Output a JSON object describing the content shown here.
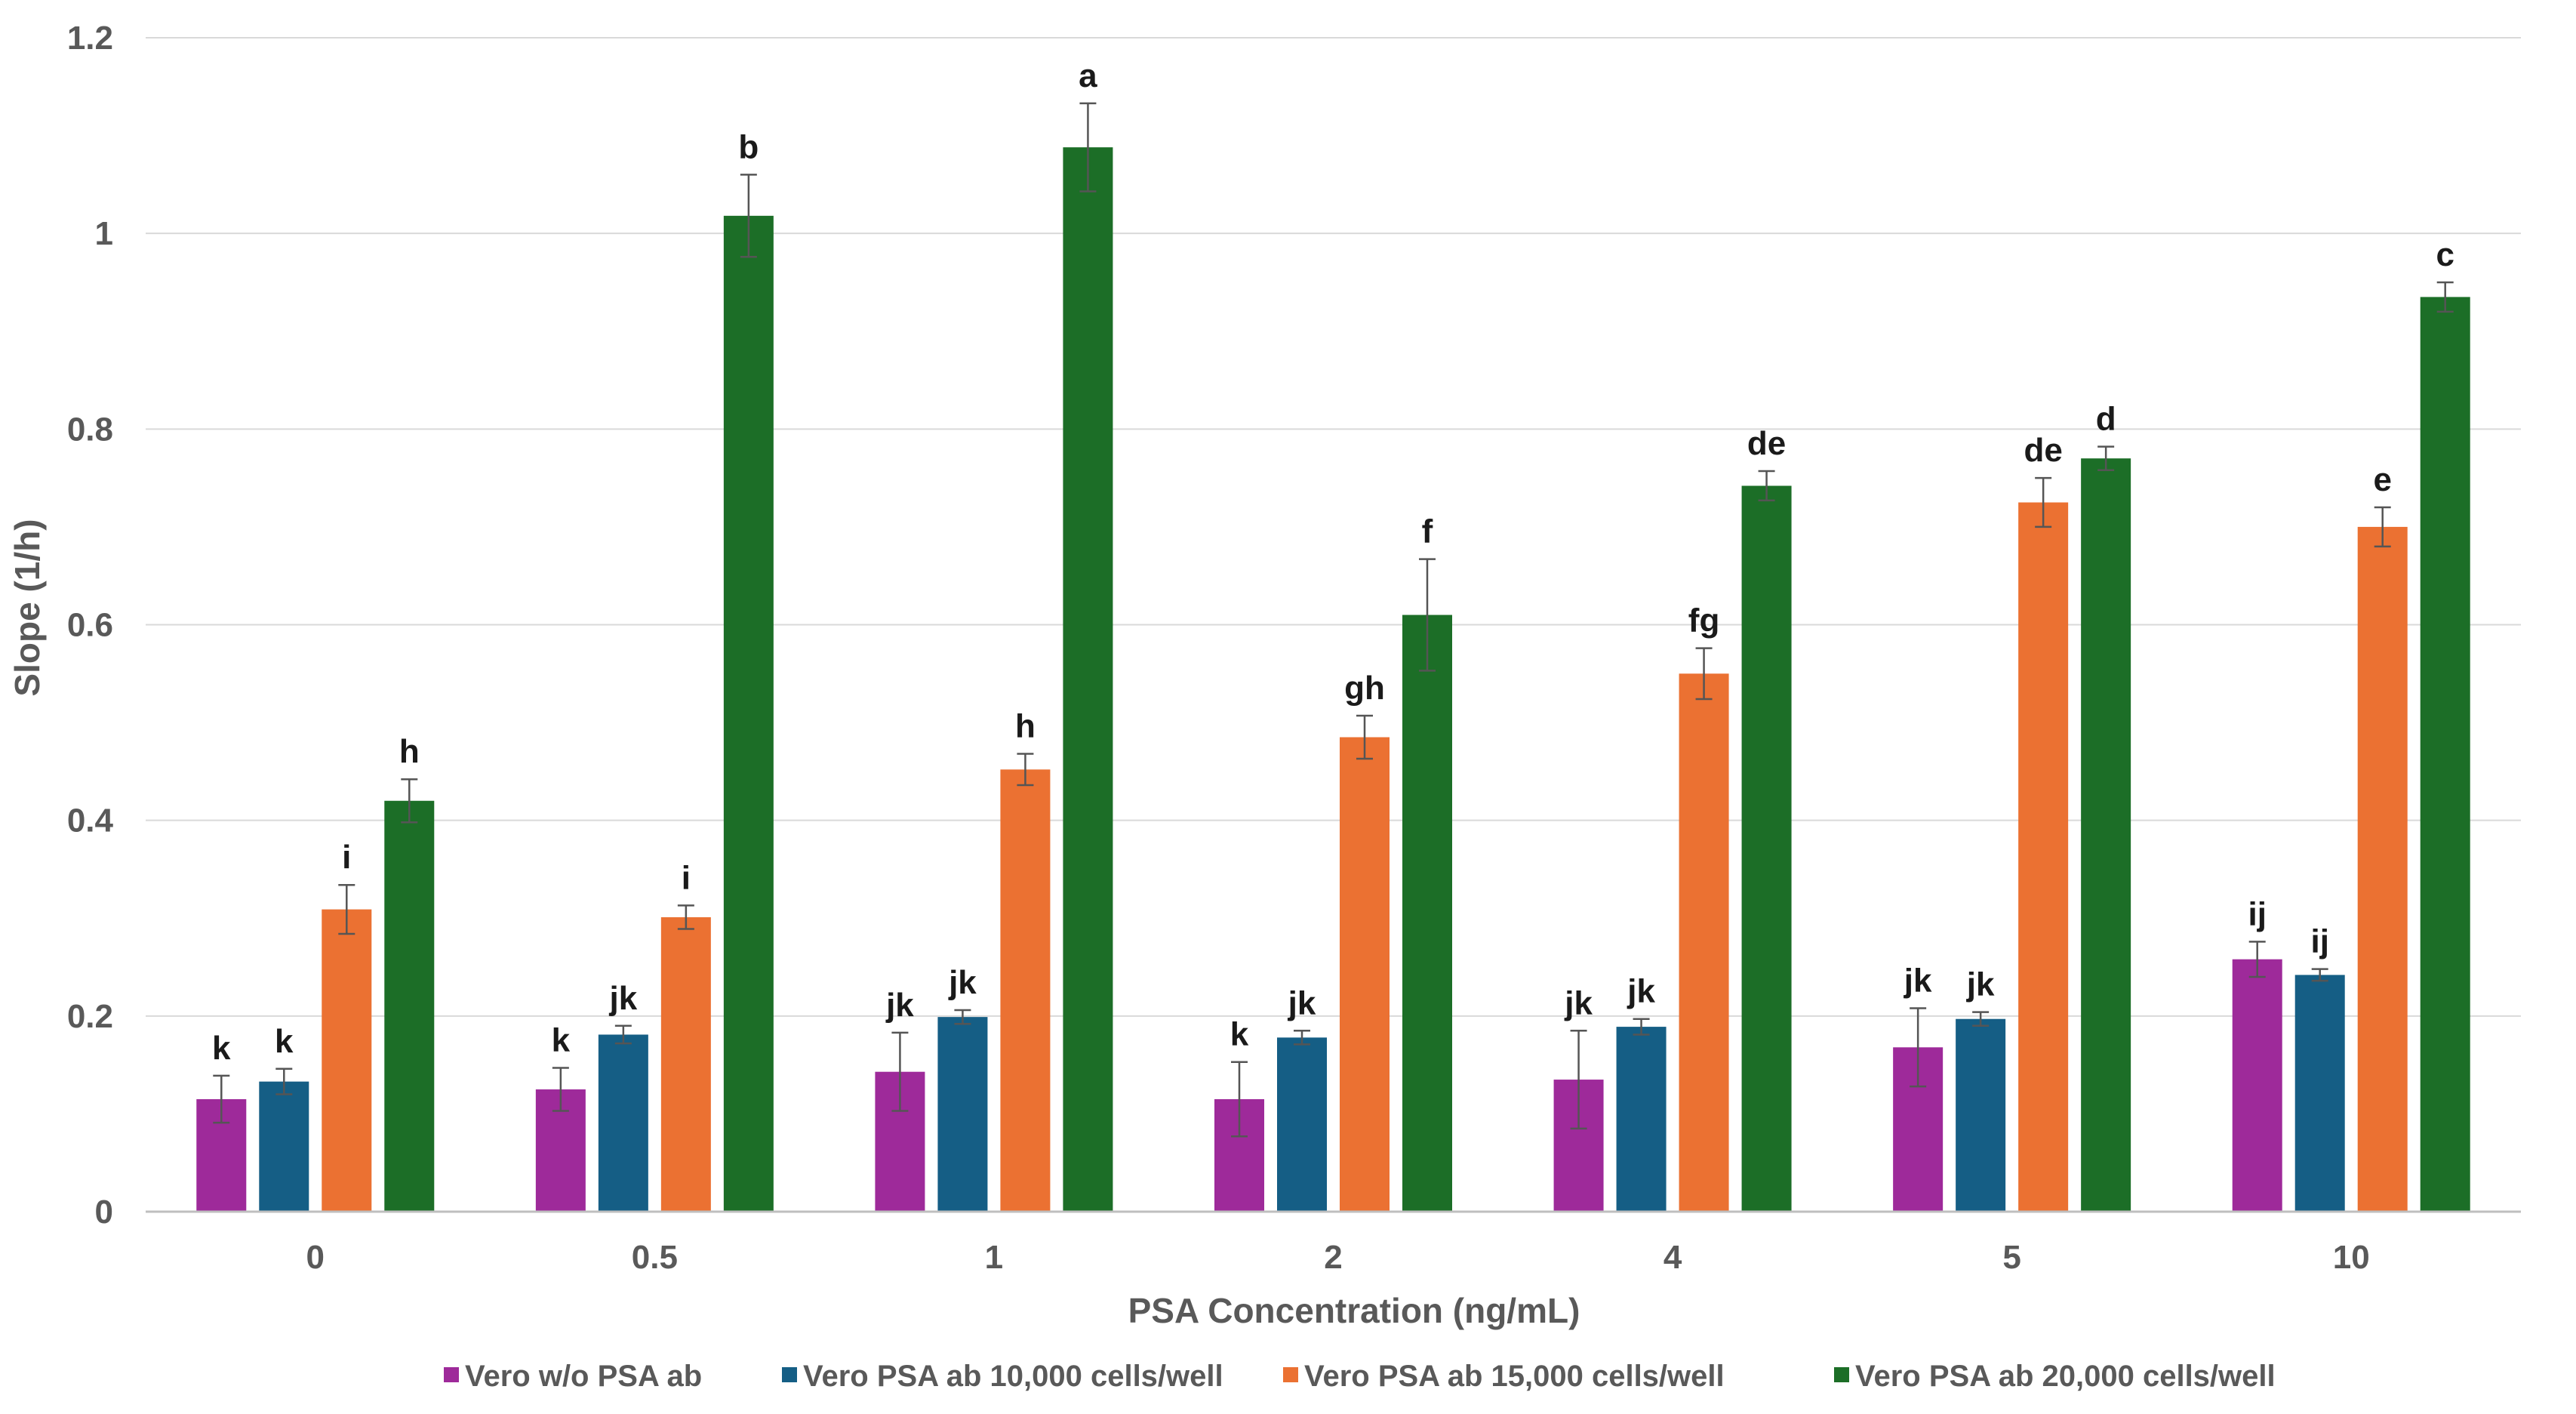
{
  "chart_data": {
    "type": "bar",
    "title": "",
    "xlabel": "PSA Concentration (ng/mL)",
    "ylabel": "Slope (1/h)",
    "ylim": [
      0,
      1.2
    ],
    "yticks": [
      "0",
      "0.2",
      "0.4",
      "0.6",
      "0.8",
      "1",
      "1.2"
    ],
    "ytick_values": [
      0,
      0.2,
      0.4,
      0.6,
      0.8,
      1.0,
      1.2
    ],
    "grid": true,
    "legend_position": "bottom",
    "categories": [
      "0",
      "0.5",
      "1",
      "2",
      "4",
      "5",
      "10"
    ],
    "series": [
      {
        "name": "Vero w/o PSA ab",
        "color": "#9E2A9A",
        "values": [
          0.115,
          0.125,
          0.143,
          0.115,
          0.135,
          0.168,
          0.258
        ],
        "errors": [
          0.024,
          0.022,
          0.04,
          0.038,
          0.05,
          0.04,
          0.018
        ],
        "labels": [
          "k",
          "k",
          "jk",
          "k",
          "jk",
          "jk",
          "ij"
        ]
      },
      {
        "name": "Vero PSA ab 10,000 cells/well",
        "color": "#155E85",
        "values": [
          0.133,
          0.181,
          0.199,
          0.178,
          0.189,
          0.197,
          0.242
        ],
        "errors": [
          0.013,
          0.009,
          0.007,
          0.007,
          0.008,
          0.007,
          0.006
        ],
        "labels": [
          "k",
          "jk",
          "jk",
          "jk",
          "jk",
          "jk",
          "ij"
        ]
      },
      {
        "name": "Vero PSA ab 15,000 cells/well",
        "color": "#EB7132",
        "values": [
          0.309,
          0.301,
          0.452,
          0.485,
          0.55,
          0.725,
          0.7
        ],
        "errors": [
          0.025,
          0.012,
          0.016,
          0.022,
          0.026,
          0.025,
          0.02
        ],
        "labels": [
          "i",
          "i",
          "h",
          "gh",
          "fg",
          "de",
          "e"
        ]
      },
      {
        "name": "Vero PSA ab 20,000 cells/well",
        "color": "#1C6E27",
        "values": [
          0.42,
          1.018,
          1.088,
          0.61,
          0.742,
          0.77,
          0.935
        ],
        "errors": [
          0.022,
          0.042,
          0.045,
          0.057,
          0.015,
          0.012,
          0.015
        ],
        "labels": [
          "h",
          "b",
          "a",
          "f",
          "de",
          "d",
          "c"
        ]
      }
    ]
  }
}
